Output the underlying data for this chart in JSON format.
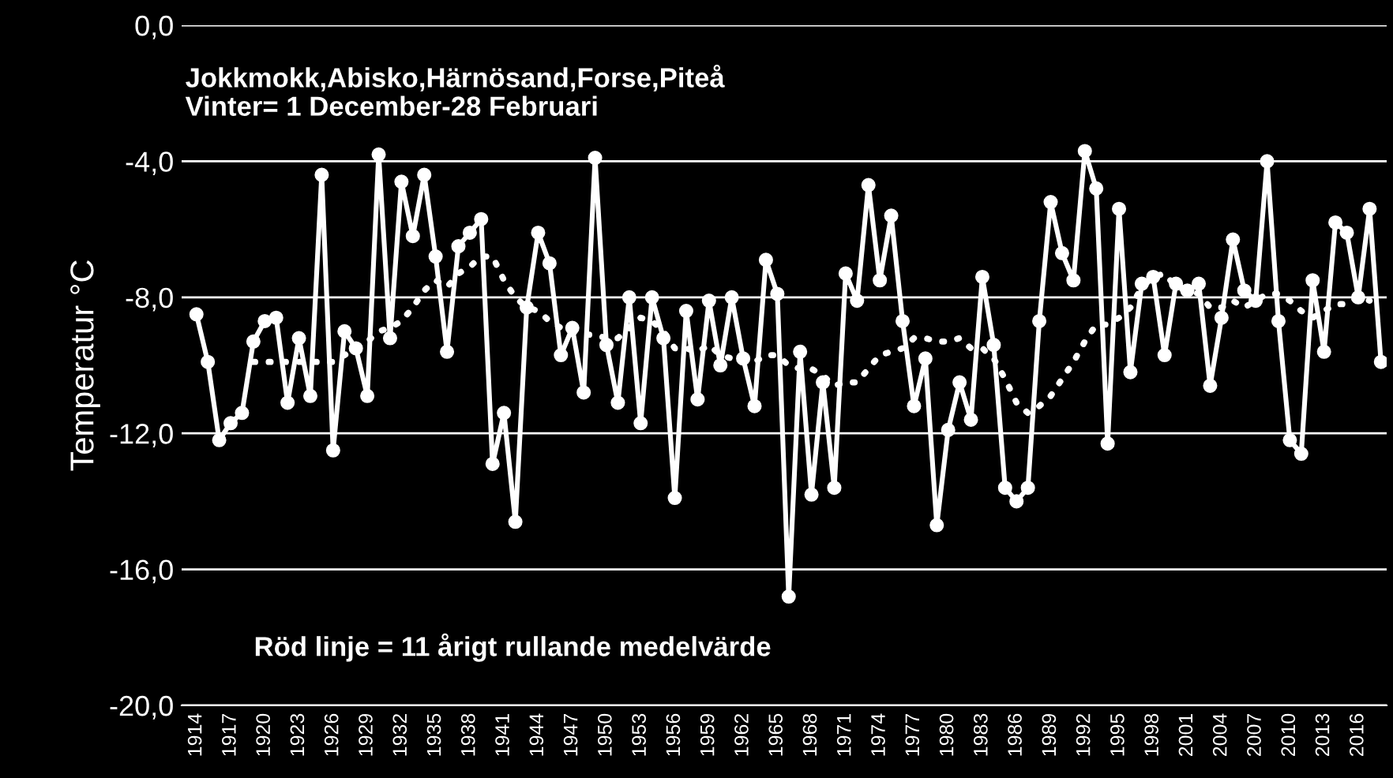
{
  "chart_data": {
    "type": "line",
    "ylabel": "Temperatur °C",
    "annotations": [
      "Jokkmokk,Abisko,Härnösand,Forse,Piteå\nVinter= 1 December-28 Februari",
      "Röd linje = 11 årigt rullande medelvärde"
    ],
    "categories": [
      "1914",
      null,
      null,
      "1917",
      null,
      null,
      "1920",
      null,
      null,
      "1923",
      null,
      null,
      "1926",
      null,
      null,
      "1929",
      null,
      null,
      "1932",
      null,
      null,
      "1935",
      null,
      null,
      "1938",
      null,
      null,
      "1941",
      null,
      null,
      "1944",
      null,
      null,
      "1947",
      null,
      null,
      "1950",
      null,
      null,
      "1953",
      null,
      null,
      "1956",
      null,
      null,
      "1959",
      null,
      null,
      "1962",
      null,
      null,
      "1965",
      null,
      null,
      "1968",
      null,
      null,
      "1971",
      null,
      null,
      "1974",
      null,
      null,
      "1977",
      null,
      null,
      "1980",
      null,
      null,
      "1983",
      null,
      null,
      "1986",
      null,
      null,
      "1989",
      null,
      null,
      "1992",
      null,
      null,
      "1995",
      null,
      null,
      "1998",
      null,
      null,
      "2001",
      null,
      null,
      "2004",
      null,
      null,
      "2007",
      null,
      null,
      "2010",
      null,
      null,
      "2013",
      null,
      null,
      "2016",
      null,
      null
    ],
    "series": [
      {
        "color": "#ffffff",
        "marker": "circle",
        "line_style": "solid",
        "values": [
          -8.5,
          -9.9,
          -12.2,
          -11.7,
          -11.4,
          -9.3,
          -8.7,
          -8.6,
          -11.1,
          -9.2,
          -10.9,
          -4.4,
          -12.5,
          -9.0,
          -9.5,
          -10.9,
          -3.8,
          -9.2,
          -4.6,
          -6.2,
          -4.4,
          -6.8,
          -9.6,
          -6.5,
          -6.1,
          -5.7,
          -12.9,
          -11.4,
          -14.6,
          -8.3,
          -6.1,
          -7.0,
          -9.7,
          -8.9,
          -10.8,
          -3.9,
          -9.4,
          -11.1,
          -8.0,
          -11.7,
          -8.0,
          -9.2,
          -13.9,
          -8.4,
          -11.0,
          -8.1,
          -10.0,
          -8.0,
          -9.8,
          -11.2,
          -6.9,
          -7.9,
          -16.8,
          -9.6,
          -13.8,
          -10.5,
          -13.6,
          -7.3,
          -8.1,
          -4.7,
          -7.5,
          -5.6,
          -8.7,
          -11.2,
          -9.8,
          -14.7,
          -11.9,
          -10.5,
          -11.6,
          -7.4,
          -9.4,
          -13.6,
          -14.0,
          -13.6,
          -8.7,
          -5.2,
          -6.7,
          -7.5,
          -3.7,
          -4.8,
          -12.3,
          -5.4,
          -10.2,
          -7.6,
          -7.4,
          -9.7,
          -7.6,
          -7.8,
          -7.6,
          -10.6,
          -8.6,
          -6.3,
          -7.8,
          -8.1,
          -4.0,
          -8.7,
          -12.2,
          -12.6,
          -7.5,
          -9.6,
          -5.8,
          -6.1,
          -8.0,
          -5.4,
          -9.9
        ]
      },
      {
        "color": "#ffffff",
        "marker": "none",
        "line_style": "dotted",
        "values": [
          null,
          null,
          null,
          null,
          null,
          -9.9,
          -9.9,
          -9.9,
          -9.9,
          -9.9,
          -9.9,
          -9.9,
          -9.9,
          -9.7,
          -9.5,
          -9.3,
          -9.0,
          -8.9,
          -8.7,
          -8.3,
          -7.8,
          -7.5,
          -7.7,
          -7.3,
          -7.1,
          -6.8,
          -6.8,
          -7.5,
          -8.0,
          -8.3,
          -8.4,
          -8.7,
          -8.9,
          -9.0,
          -9.1,
          -9.1,
          -9.2,
          -9.2,
          -8.9,
          -8.6,
          -8.7,
          -9.0,
          -9.5,
          -9.5,
          -9.6,
          -9.4,
          -9.7,
          -9.8,
          -9.8,
          -9.9,
          -9.7,
          -9.7,
          -10.0,
          -10.1,
          -10.1,
          -10.3,
          -10.6,
          -10.5,
          -10.5,
          -10.1,
          -9.7,
          -9.6,
          -9.5,
          -9.2,
          -9.2,
          -9.3,
          -9.3,
          -9.2,
          -9.5,
          -9.5,
          -9.8,
          -10.4,
          -11.1,
          -11.4,
          -11.2,
          -10.9,
          -10.4,
          -9.9,
          -9.3,
          -8.8,
          -8.8,
          -8.6,
          -8.3,
          -7.7,
          -7.4,
          -7.3,
          -7.7,
          -7.8,
          -7.9,
          -8.3,
          -8.3,
          -8.1,
          -8.3,
          -8.1,
          -7.9,
          -7.9,
          -8.1,
          -8.4,
          -8.6,
          -8.4,
          -8.2,
          -8.2,
          -8.0,
          -8.1,
          null
        ]
      }
    ],
    "ylim": [
      -20,
      0
    ],
    "yticks": [
      {
        "value": -20,
        "label": "-20,0"
      },
      {
        "value": -16,
        "label": "-16,0"
      },
      {
        "value": -12,
        "label": "-12,0"
      },
      {
        "value": -8,
        "label": "-8,0"
      },
      {
        "value": -4,
        "label": "-4,0"
      },
      {
        "value": 0,
        "label": "0,0"
      }
    ],
    "grid": "y"
  }
}
